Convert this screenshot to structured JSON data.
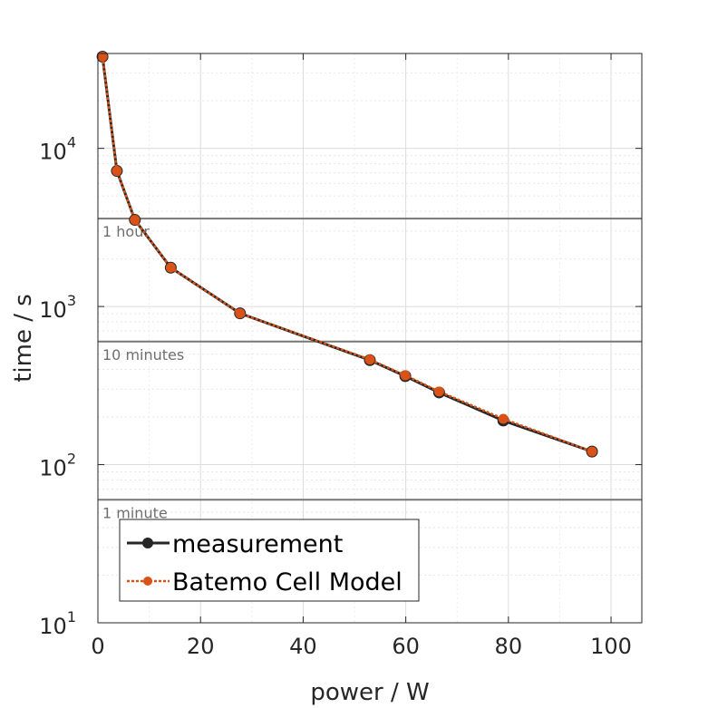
{
  "chart_data": {
    "type": "line",
    "xlabel": "power / W",
    "ylabel": "time / s",
    "xlim": [
      0,
      106
    ],
    "ylim_log10": [
      1,
      4.6
    ],
    "yscale": "log",
    "x_ticks": [
      0,
      20,
      40,
      60,
      80,
      100
    ],
    "x_tick_labels": [
      "0",
      "20",
      "40",
      "60",
      "80",
      "100"
    ],
    "y_ticks": [
      {
        "base": "10",
        "exp": "1",
        "log": 1
      },
      {
        "base": "10",
        "exp": "2",
        "log": 2
      },
      {
        "base": "10",
        "exp": "3",
        "log": 3
      },
      {
        "base": "10",
        "exp": "4",
        "log": 4
      }
    ],
    "grid": true,
    "reference_lines": [
      {
        "value": 3600,
        "label": "1 hour"
      },
      {
        "value": 600,
        "label": "10 minutes"
      },
      {
        "value": 60,
        "label": "1 minute"
      }
    ],
    "series": [
      {
        "name": "measurement",
        "color": "#262626",
        "style": "solid",
        "x": [
          0.9,
          3.7,
          7.2,
          14.2,
          27.7,
          53.0,
          59.9,
          66.5,
          79.0,
          96.3
        ],
        "y": [
          38000,
          7200,
          3530,
          1760,
          905,
          458,
          363,
          286,
          190,
          121
        ]
      },
      {
        "name": "Batemo Cell Model",
        "color": "#d95319",
        "style": "dotted",
        "x": [
          0.9,
          3.7,
          7.2,
          14.2,
          27.7,
          53.0,
          59.9,
          66.5,
          79.0,
          96.3
        ],
        "y": [
          38000,
          7200,
          3530,
          1760,
          905,
          462,
          367,
          290,
          195,
          121
        ]
      }
    ],
    "legend_position": "bottom-left"
  }
}
